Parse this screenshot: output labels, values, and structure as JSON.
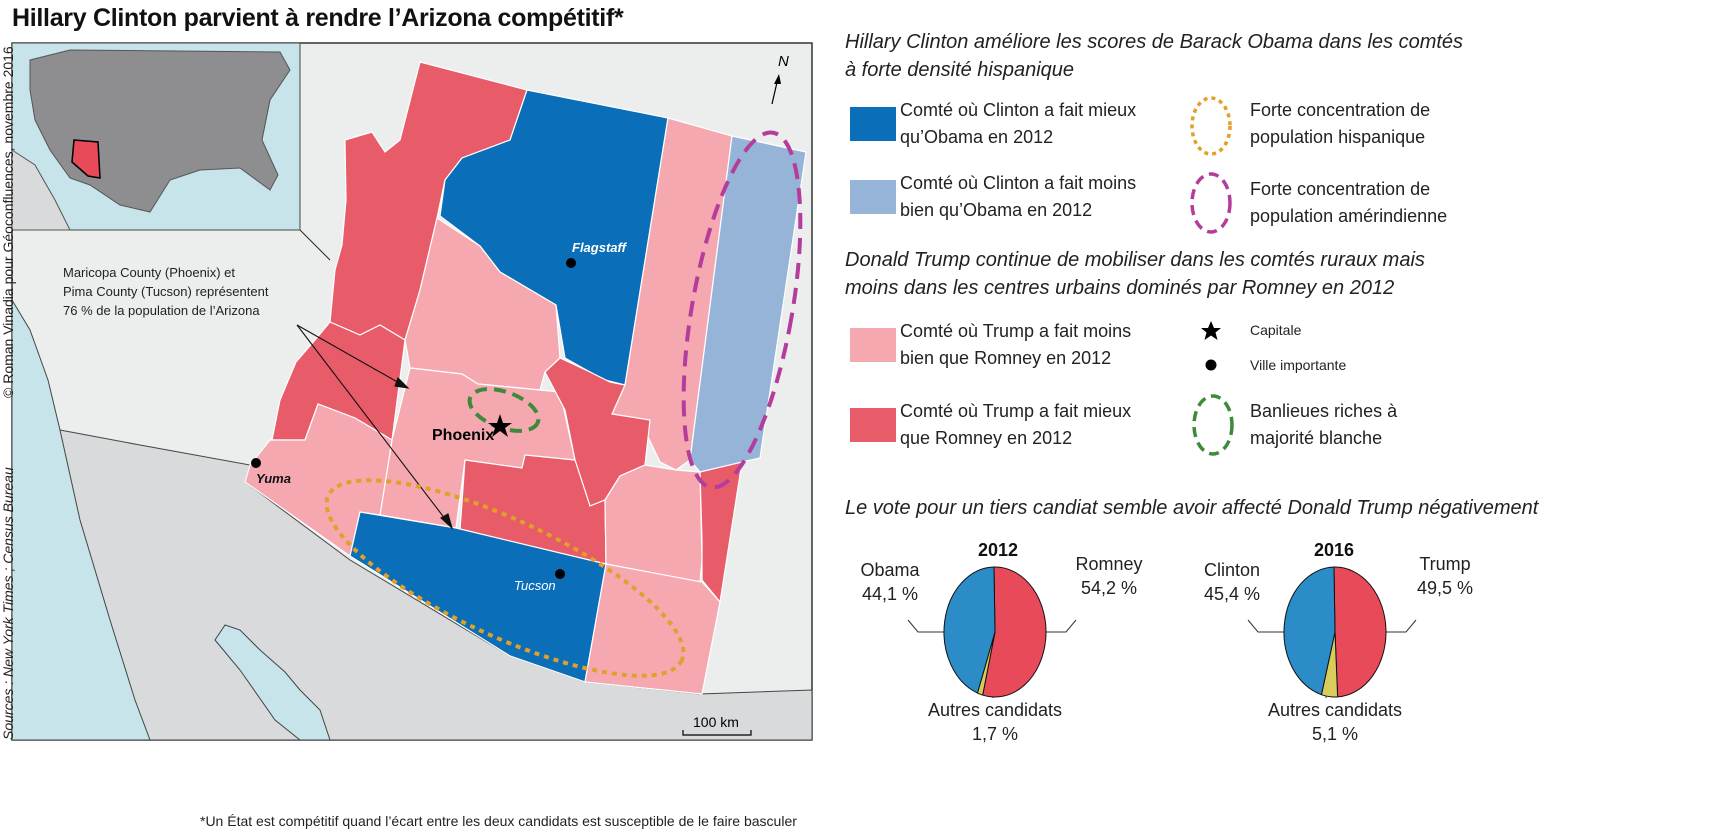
{
  "title": "Hillary Clinton parvient à rendre l’Arizona compétitif*",
  "credits": {
    "author": "© Roman Vinadia pour Géoconfluences, novembre 2016",
    "sources": "Sources : New York Times ; Census Bureau"
  },
  "map": {
    "annotation": [
      "Maricopa County (Phoenix) et",
      "Pima County (Tucson) représentent",
      "76 % de la population de l’Arizona"
    ],
    "cities": {
      "phoenix": "Phoenix",
      "flagstaff": "Flagstaff",
      "tucson": "Tucson",
      "yuma": "Yuma"
    },
    "north": "N",
    "scale": "100 km",
    "colors": {
      "clinton_better": "#0a6eb8",
      "clinton_worse": "#96b4d8",
      "trump_worse": "#f5a8b0",
      "trump_better": "#e85b68",
      "hispanic": "#e0a02a",
      "native": "#b43c9c",
      "suburbs": "#3d8a3a"
    }
  },
  "legend": {
    "section1_title": [
      "Hillary Clinton améliore les scores de Barack Obama dans les comtés",
      "à forte densité hispanique"
    ],
    "clinton_better": [
      "Comté où Clinton a fait mieux",
      "qu’Obama en 2012"
    ],
    "clinton_worse": [
      "Comté où Clinton a fait moins",
      "bien qu’Obama en 2012"
    ],
    "hispanic": [
      "Forte concentration de",
      "population hispanique"
    ],
    "native": [
      "Forte concentration de",
      "population amérindienne"
    ],
    "section2_title": [
      "Donald Trump continue de mobiliser dans les comtés ruraux mais",
      "moins dans les centres urbains dominés par Romney en 2012"
    ],
    "trump_worse": [
      "Comté où Trump a fait moins",
      "bien que Romney en 2012"
    ],
    "trump_better": [
      "Comté où Trump a fait mieux",
      "que Romney en 2012"
    ],
    "capital": "Capitale",
    "city": "Ville importante",
    "suburbs": [
      "Banlieues riches à",
      "majorité blanche"
    ],
    "section3_title": "Le vote pour un tiers candiat semble avoir affecté Donald Trump négativement"
  },
  "chart_data": [
    {
      "type": "pie",
      "title": "2012",
      "slices": [
        {
          "name": "Romney",
          "value": 54.2,
          "label": "54,2 %",
          "color": "#e84a5a"
        },
        {
          "name": "Autres candidats",
          "value": 1.7,
          "label": "1,7 %",
          "color": "#d8cc5a"
        },
        {
          "name": "Obama",
          "value": 44.1,
          "label": "44,1 %",
          "color": "#2b8cc8"
        }
      ]
    },
    {
      "type": "pie",
      "title": "2016",
      "slices": [
        {
          "name": "Trump",
          "value": 49.5,
          "label": "49,5 %",
          "color": "#e84a5a"
        },
        {
          "name": "Autres candidats",
          "value": 5.1,
          "label": "5,1 %",
          "color": "#d8cc5a"
        },
        {
          "name": "Clinton",
          "value": 45.4,
          "label": "45,4 %",
          "color": "#2b8cc8"
        }
      ]
    }
  ],
  "footnote": "*Un État est compétitif quand l’écart entre les deux candidats est susceptible de le faire basculer"
}
